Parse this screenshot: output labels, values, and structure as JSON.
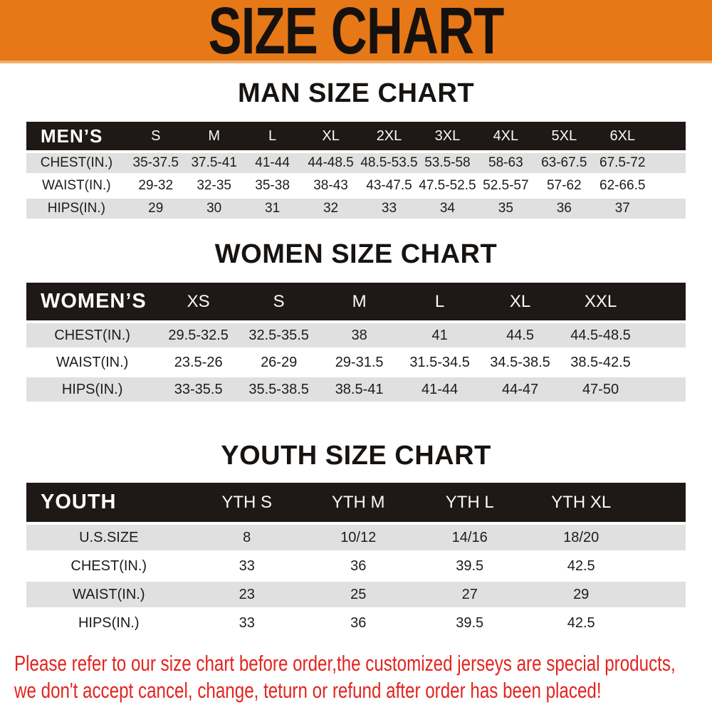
{
  "banner": {
    "title": "SIZE CHART"
  },
  "sections": [
    {
      "heading": "MAN SIZE CHART",
      "table": {
        "id": "mens",
        "header_label": "MEN’S",
        "columns": [
          "S",
          "M",
          "L",
          "XL",
          "2XL",
          "3XL",
          "4XL",
          "5XL",
          "6XL"
        ],
        "rows": [
          {
            "label": "CHEST(IN.)",
            "values": [
              "35-37.5",
              "37.5-41",
              "41-44",
              "44-48.5",
              "48.5-53.5",
              "53.5-58",
              "58-63",
              "63-67.5",
              "67.5-72"
            ]
          },
          {
            "label": "WAIST(IN.)",
            "values": [
              "29-32",
              "32-35",
              "35-38",
              "38-43",
              "43-47.5",
              "47.5-52.5",
              "52.5-57",
              "57-62",
              "62-66.5"
            ]
          },
          {
            "label": "HIPS(IN.)",
            "values": [
              "29",
              "30",
              "31",
              "32",
              "33",
              "34",
              "35",
              "36",
              "37"
            ]
          }
        ]
      }
    },
    {
      "heading": "WOMEN SIZE CHART",
      "table": {
        "id": "womens",
        "header_label": "WOMEN’S",
        "columns": [
          "XS",
          "S",
          "M",
          "L",
          "XL",
          "XXL"
        ],
        "rows": [
          {
            "label": "CHEST(IN.)",
            "values": [
              "29.5-32.5",
              "32.5-35.5",
              "38",
              "41",
              "44.5",
              "44.5-48.5"
            ]
          },
          {
            "label": "WAIST(IN.)",
            "values": [
              "23.5-26",
              "26-29",
              "29-31.5",
              "31.5-34.5",
              "34.5-38.5",
              "38.5-42.5"
            ]
          },
          {
            "label": "HIPS(IN.)",
            "values": [
              "33-35.5",
              "35.5-38.5",
              "38.5-41",
              "41-44",
              "44-47",
              "47-50"
            ]
          }
        ]
      }
    },
    {
      "heading": "YOUTH SIZE CHART",
      "table": {
        "id": "youth",
        "header_label": "YOUTH",
        "columns": [
          "YTH S",
          "YTH M",
          "YTH L",
          "YTH XL"
        ],
        "rows": [
          {
            "label": "U.S.SIZE",
            "values": [
              "8",
              "10/12",
              "14/16",
              "18/20"
            ]
          },
          {
            "label": "CHEST(IN.)",
            "values": [
              "33",
              "36",
              "39.5",
              "42.5"
            ]
          },
          {
            "label": "WAIST(IN.)",
            "values": [
              "23",
              "25",
              "27",
              "29"
            ]
          },
          {
            "label": "HIPS(IN.)",
            "values": [
              "33",
              "36",
              "39.5",
              "42.5"
            ]
          }
        ]
      }
    }
  ],
  "footer": {
    "line1": "Please refer to our size chart before order,the customized jerseys are special products,",
    "line2": "we don't accept cancel, change, teturn or refund after order has been placed!"
  },
  "colors": {
    "banner_orange": "#E67817",
    "banner_edge": "#F0AE6E",
    "table_header_black": "#1E1916",
    "row_gray": "#E0E0E0",
    "notice_red": "#E3241F"
  }
}
